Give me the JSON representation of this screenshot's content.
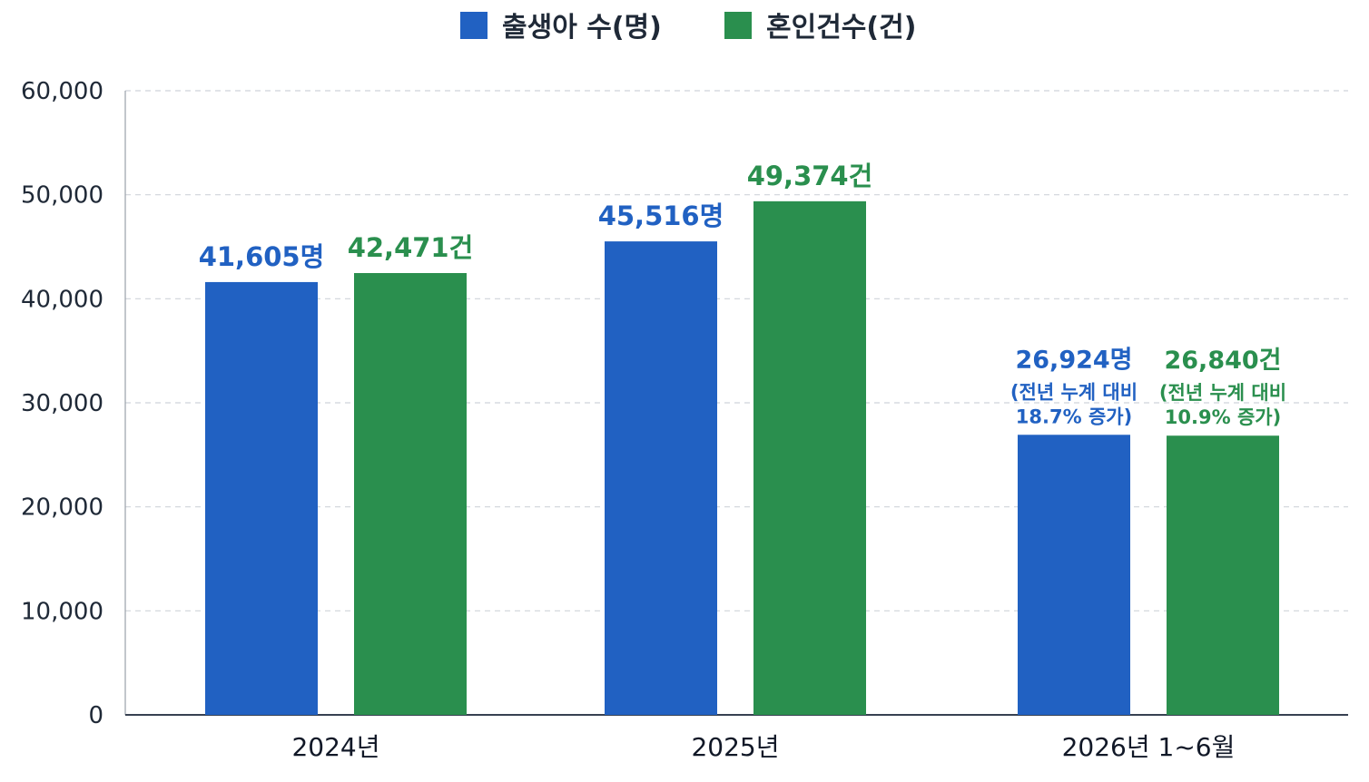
{
  "chart_data": {
    "type": "bar",
    "categories": [
      "2024년",
      "2025년",
      "2026년 1~6월"
    ],
    "series": [
      {
        "name": "출생아 수(명)",
        "color": "#2161c2",
        "values": [
          41605,
          45516,
          26924
        ],
        "labels": [
          "41,605명",
          "45,516명",
          "26,924명"
        ],
        "notes": [
          null,
          null,
          [
            "(전년 누계 대비",
            "18.7% 증가)"
          ]
        ]
      },
      {
        "name": "혼인건수(건)",
        "color": "#2a8f4e",
        "values": [
          42471,
          49374,
          26840
        ],
        "labels": [
          "42,471건",
          "49,374건",
          "26,840건"
        ],
        "notes": [
          null,
          null,
          [
            "(전년 누계 대비",
            "10.9% 증가)"
          ]
        ]
      }
    ],
    "y_ticks": [
      "0",
      "10,000",
      "20,000",
      "30,000",
      "40,000",
      "50,000",
      "60,000"
    ],
    "ylim": [
      0,
      60000
    ],
    "grid": true,
    "legend_position": "top-center"
  }
}
